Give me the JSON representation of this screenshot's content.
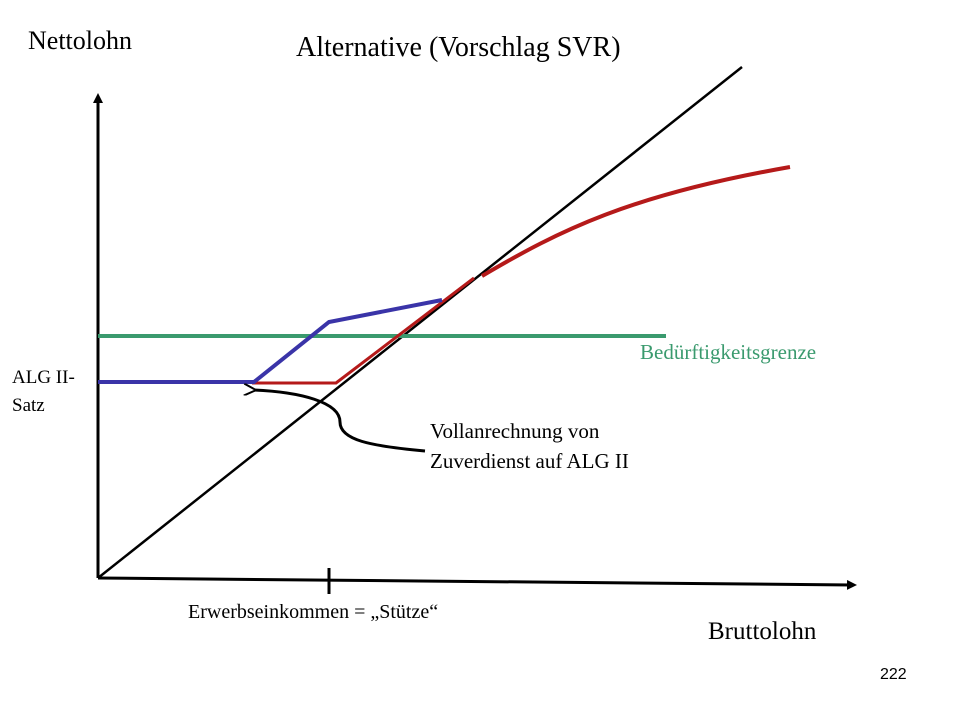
{
  "title": "Alternative (Vorschlag SVR)",
  "axes": {
    "y_label": "Nettolohn",
    "x_label": "Bruttolohn",
    "x_tick_label": "Erwerbseinkommen = „Stütze“"
  },
  "labels": {
    "alg_satz_line1": "ALG II-",
    "alg_satz_line2": "Satz",
    "beduerftigkeitsgrenze": "Bedürftigkeitsgrenze",
    "vollanrechnung_line1": "Vollanrechnung von",
    "vollanrechnung_line2": "Zuverdienst auf ALG II"
  },
  "colors": {
    "axis": "#000000",
    "diagonal": "#000000",
    "blue_curve": "#3a34a8",
    "red_curve": "#b51a1a",
    "green_line": "#3a9a6e"
  },
  "slide_number": "222"
}
